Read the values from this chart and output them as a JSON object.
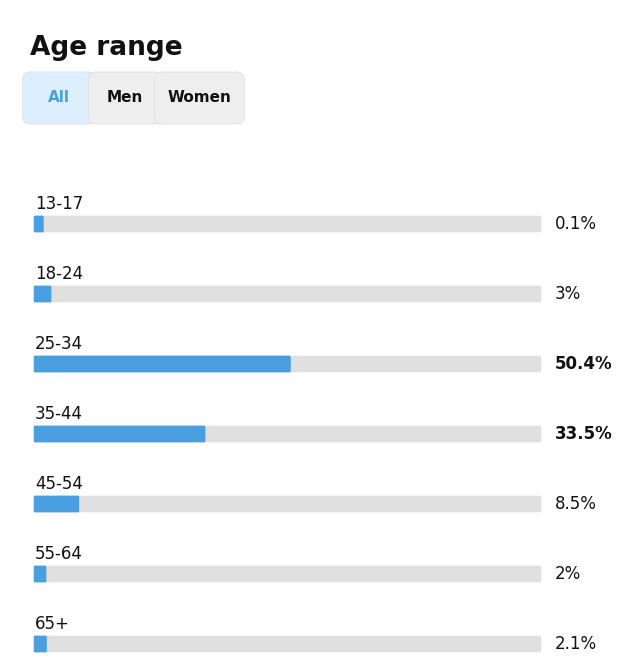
{
  "title": "Age range",
  "categories": [
    "13-17",
    "18-24",
    "25-34",
    "35-44",
    "45-54",
    "55-64",
    "65+"
  ],
  "values": [
    0.1,
    3.0,
    50.4,
    33.5,
    8.5,
    2.0,
    2.1
  ],
  "labels": [
    "0.1%",
    "3%",
    "50.4%",
    "33.5%",
    "8.5%",
    "2%",
    "2.1%"
  ],
  "bold_labels": [
    false,
    false,
    true,
    true,
    false,
    false,
    false
  ],
  "max_value": 100,
  "bar_color": "#4a9fe0",
  "bg_bar_color": "#e0e0e0",
  "background_color": "#ffffff",
  "text_color": "#111111",
  "label_color": "#111111",
  "title_fontsize": 19,
  "category_fontsize": 12,
  "value_fontsize": 12,
  "buttons": [
    "All",
    "Men",
    "Women"
  ],
  "active_button": 0,
  "active_btn_text_color": "#4a9fe0",
  "active_btn_bg": "#ddeeff",
  "inactive_btn_bg": "#eeeeee",
  "inactive_btn_text_color": "#111111",
  "figsize": [
    6.2,
    6.68
  ],
  "dpi": 100
}
